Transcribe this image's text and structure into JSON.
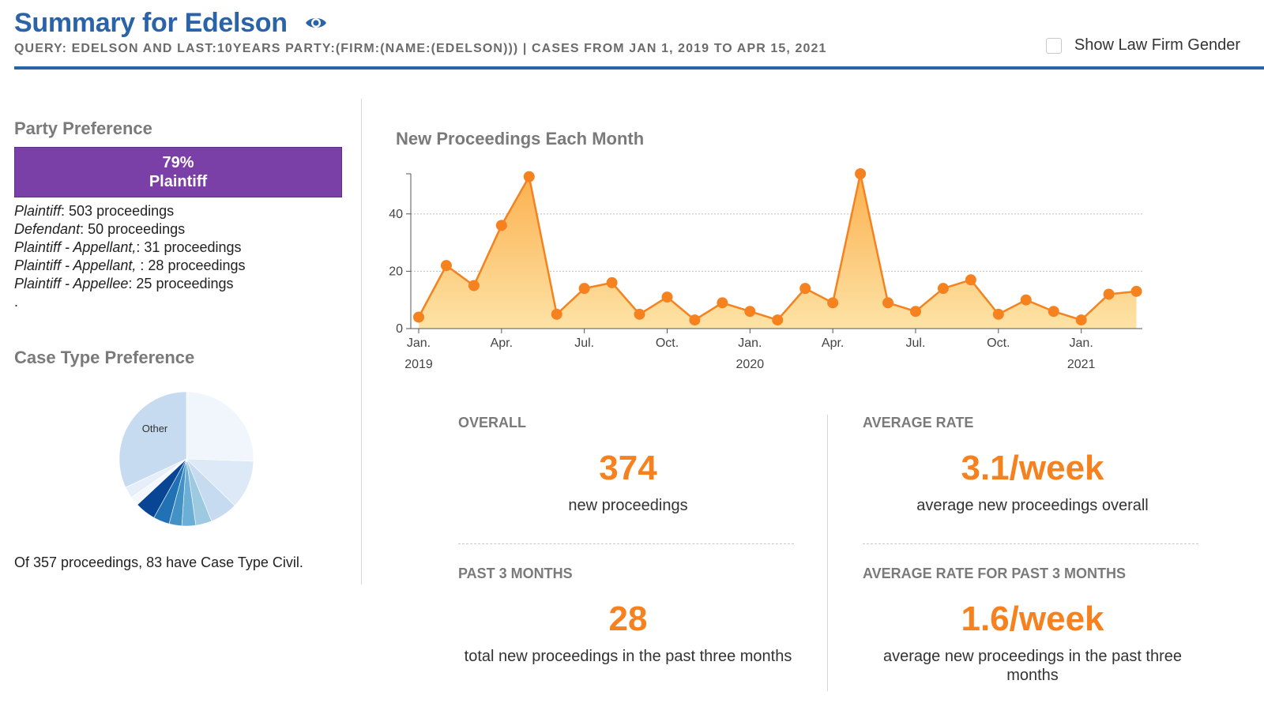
{
  "header": {
    "title": "Summary for Edelson",
    "query": "QUERY: EDELSON AND LAST:10YEARS PARTY:(FIRM:(NAME:(EDELSON))) | CASES FROM JAN 1, 2019 TO APR 15, 2021",
    "gender_toggle_label": "Show Law Firm Gender",
    "gender_toggle_checked": false,
    "accent_color": "#2b63a8"
  },
  "party_preference": {
    "title": "Party Preference",
    "bar_percent": "79%",
    "bar_label": "Plaintiff",
    "bar_color": "#7b3fa8",
    "items": [
      {
        "role": "Plaintiff",
        "detail": ": 503 proceedings"
      },
      {
        "role": "Defendant",
        "detail": ": 50 proceedings"
      },
      {
        "role": "Plaintiff - Appellant,",
        "detail": ": 31 proceedings"
      },
      {
        "role": "Plaintiff - Appellant, ",
        "detail": ": 28 proceedings"
      },
      {
        "role": "Plaintiff - Appellee",
        "detail": ": 25 proceedings"
      }
    ],
    "trailing": "."
  },
  "case_type_preference": {
    "title": "Case Type Preference",
    "pie_label": "Other",
    "note": "Of 357 proceedings, 83 have Case Type Civil."
  },
  "chart_data": {
    "type": "area",
    "title": "New Proceedings Each Month",
    "x": [
      "2019-01",
      "2019-02",
      "2019-03",
      "2019-04",
      "2019-05",
      "2019-06",
      "2019-07",
      "2019-08",
      "2019-09",
      "2019-10",
      "2019-11",
      "2019-12",
      "2020-01",
      "2020-02",
      "2020-03",
      "2020-04",
      "2020-05",
      "2020-06",
      "2020-07",
      "2020-08",
      "2020-09",
      "2020-10",
      "2020-11",
      "2020-12",
      "2021-01",
      "2021-02",
      "2021-03"
    ],
    "values": [
      4,
      22,
      15,
      36,
      53,
      5,
      14,
      16,
      5,
      11,
      3,
      9,
      6,
      3,
      14,
      9,
      54,
      9,
      6,
      14,
      17,
      5,
      10,
      6,
      3,
      12,
      13
    ],
    "ylim": [
      0,
      54
    ],
    "yticks": [
      0,
      20,
      40
    ],
    "xtick_labels": [
      {
        "label": "Jan.",
        "year": "2019",
        "index": 0
      },
      {
        "label": "Apr.",
        "year": "",
        "index": 3
      },
      {
        "label": "Jul.",
        "year": "",
        "index": 6
      },
      {
        "label": "Oct.",
        "year": "",
        "index": 9
      },
      {
        "label": "Jan.",
        "year": "2020",
        "index": 12
      },
      {
        "label": "Apr.",
        "year": "",
        "index": 15
      },
      {
        "label": "Jul.",
        "year": "",
        "index": 18
      },
      {
        "label": "Oct.",
        "year": "",
        "index": 21
      },
      {
        "label": "Jan.",
        "year": "2021",
        "index": 24
      }
    ],
    "grid": true,
    "line_color": "#f5821f",
    "fill_color": "#fdc36f"
  },
  "stats": {
    "overall": {
      "label": "OVERALL",
      "value": "374",
      "desc": "new proceedings"
    },
    "average_rate": {
      "label": "AVERAGE RATE",
      "value": "3.1/week",
      "desc": "average new proceedings overall"
    },
    "past_3_months": {
      "label": "PAST 3 MONTHS",
      "value": "28",
      "desc": "total new proceedings in the past three months"
    },
    "average_rate_past_3_months": {
      "label": "AVERAGE RATE FOR PAST 3 MONTHS",
      "value": "1.6/week",
      "desc": "average new proceedings in the past three months"
    },
    "value_color": "#f5821f"
  }
}
